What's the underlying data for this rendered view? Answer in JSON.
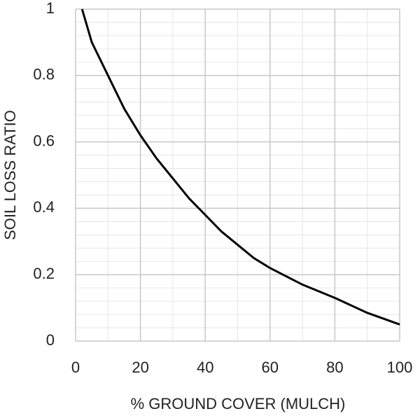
{
  "chart_data": {
    "type": "line",
    "xlabel": "% GROUND COVER (MULCH)",
    "ylabel": "SOIL LOSS RATIO",
    "x": [
      2,
      5,
      10,
      15,
      20,
      25,
      30,
      35,
      40,
      45,
      50,
      55,
      60,
      70,
      80,
      90,
      100
    ],
    "series": [
      {
        "color": "#000000",
        "values": [
          1,
          0.9,
          0.8,
          0.7,
          0.62,
          0.55,
          0.49,
          0.43,
          0.38,
          0.33,
          0.29,
          0.25,
          0.22,
          0.17,
          0.13,
          0.085,
          0.05
        ]
      }
    ],
    "xlim": [
      0,
      100
    ],
    "xticks": [
      0,
      20,
      40,
      60,
      80,
      100
    ],
    "ylim": [
      0,
      1
    ],
    "yticks": [
      0,
      0.2,
      0.4,
      0.6,
      0.8,
      1
    ],
    "x_minor_ticks": [
      10,
      30,
      50,
      70,
      90
    ],
    "y_minor_ticks": [
      0.04,
      0.08,
      0.12,
      0.16,
      0.24,
      0.28,
      0.32,
      0.36,
      0.44,
      0.48,
      0.52,
      0.56,
      0.64,
      0.68,
      0.72,
      0.76,
      0.84,
      0.88,
      0.92,
      0.96
    ],
    "grid": true
  }
}
